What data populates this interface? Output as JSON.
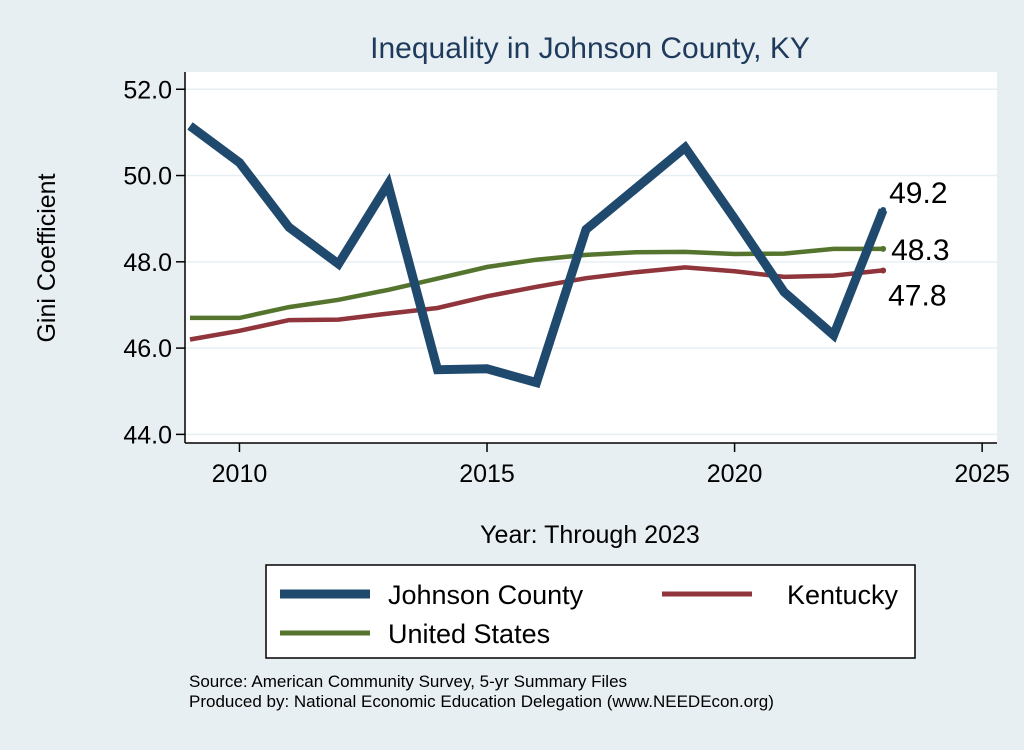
{
  "chart_data": {
    "type": "line",
    "title": "Inequality in Johnson County, KY",
    "xlabel": "Year: Through 2023",
    "ylabel": "Gini Coefficient",
    "xlim": [
      2008.9,
      2025.3
    ],
    "ylim": [
      43.8,
      52.4
    ],
    "x_ticks": [
      2010,
      2015,
      2020,
      2025
    ],
    "y_ticks": [
      44.0,
      46.0,
      48.0,
      50.0,
      52.0
    ],
    "y_tick_labels": [
      "44.0",
      "46.0",
      "48.0",
      "50.0",
      "52.0"
    ],
    "grid": "horizontal",
    "x": [
      2009,
      2010,
      2011,
      2012,
      2013,
      2014,
      2015,
      2016,
      2017,
      2018,
      2019,
      2020,
      2021,
      2022,
      2023
    ],
    "series": [
      {
        "name": "Johnson County",
        "color": "#1f4a6e",
        "values": [
          51.15,
          50.3,
          48.8,
          47.95,
          49.8,
          45.5,
          45.52,
          45.2,
          48.75,
          49.7,
          50.65,
          49.0,
          47.3,
          46.3,
          49.2
        ],
        "end_label": "49.2"
      },
      {
        "name": "Kentucky",
        "color": "#90353b",
        "values": [
          46.2,
          46.4,
          46.65,
          46.66,
          46.8,
          46.93,
          47.2,
          47.42,
          47.62,
          47.76,
          47.87,
          47.78,
          47.65,
          47.68,
          47.8
        ],
        "end_label": "47.8"
      },
      {
        "name": "United States",
        "color": "#55752f",
        "values": [
          46.7,
          46.7,
          46.95,
          47.12,
          47.35,
          47.61,
          47.88,
          48.05,
          48.16,
          48.22,
          48.23,
          48.18,
          48.19,
          48.3,
          48.3
        ],
        "end_label": "48.3"
      }
    ],
    "legend_position": "bottom"
  },
  "footer": {
    "source": "Source: American Community Survey, 5-yr Summary Files",
    "produced_by": "Produced by: National Economic Education Delegation (www.NEEDEcon.org)"
  }
}
